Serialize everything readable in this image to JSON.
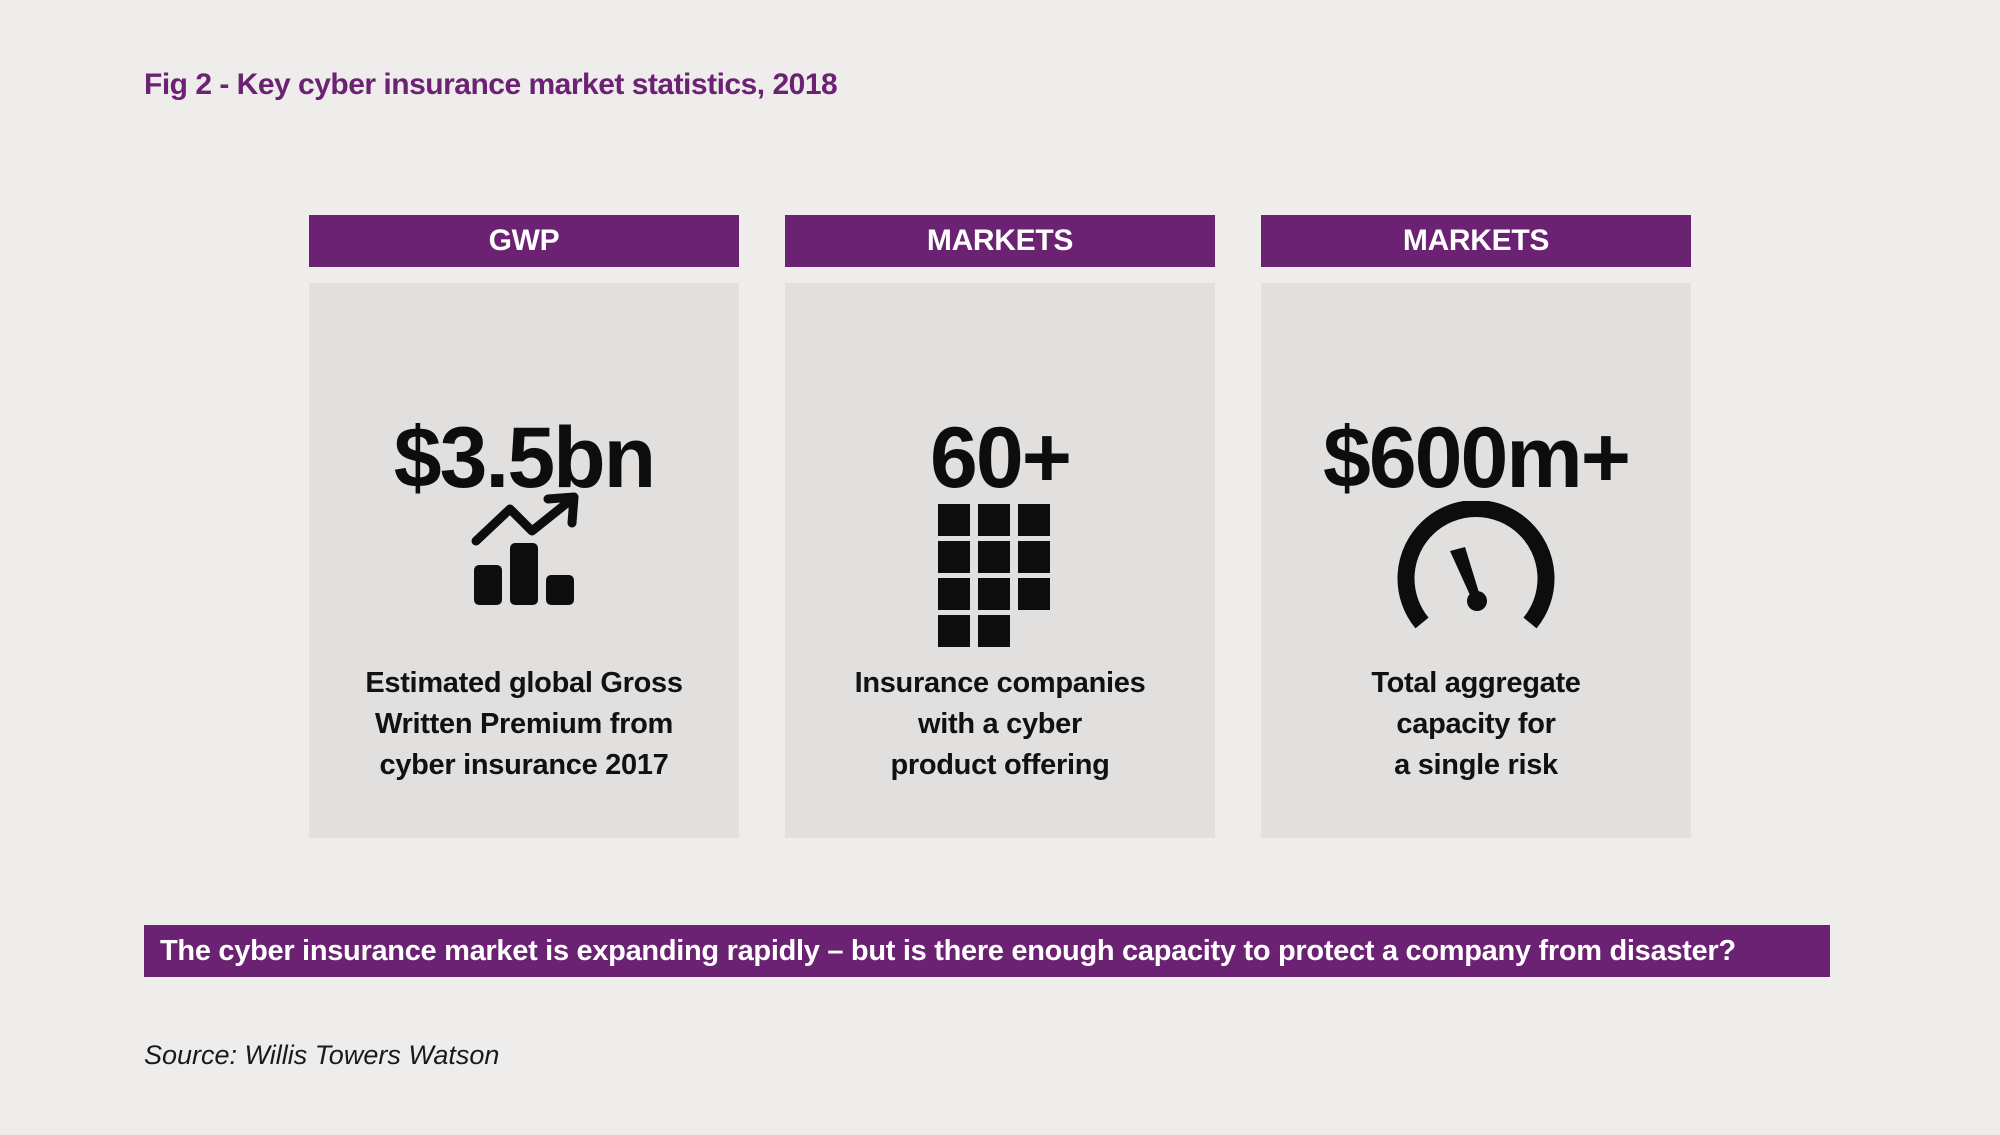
{
  "figure": {
    "title": "Fig 2 - Key cyber insurance market statistics, 2018"
  },
  "stats": [
    {
      "header": "GWP",
      "value": "$3.5bn",
      "icon": "rising-bar-chart-icon",
      "description": [
        "Estimated global Gross",
        "Written Premium from",
        "cyber insurance 2017"
      ]
    },
    {
      "header": "MARKETS",
      "value": "60+",
      "icon": "grid-blocks-icon",
      "description": [
        "Insurance companies",
        "with a cyber",
        "product offering"
      ]
    },
    {
      "header": "MARKETS",
      "value": "$600m+",
      "icon": "speedometer-gauge-icon",
      "description": [
        "Total aggregate",
        "capacity for",
        "a single risk"
      ]
    }
  ],
  "banner": {
    "text": "The cyber insurance market is expanding rapidly – but is there enough capacity to protect a company from disaster?"
  },
  "source": {
    "text": "Source: Willis Towers Watson"
  },
  "colors": {
    "accent": "#6b2272",
    "background": "#eeedeb",
    "card": "#e1e0de",
    "text": "#0d0d0d"
  }
}
